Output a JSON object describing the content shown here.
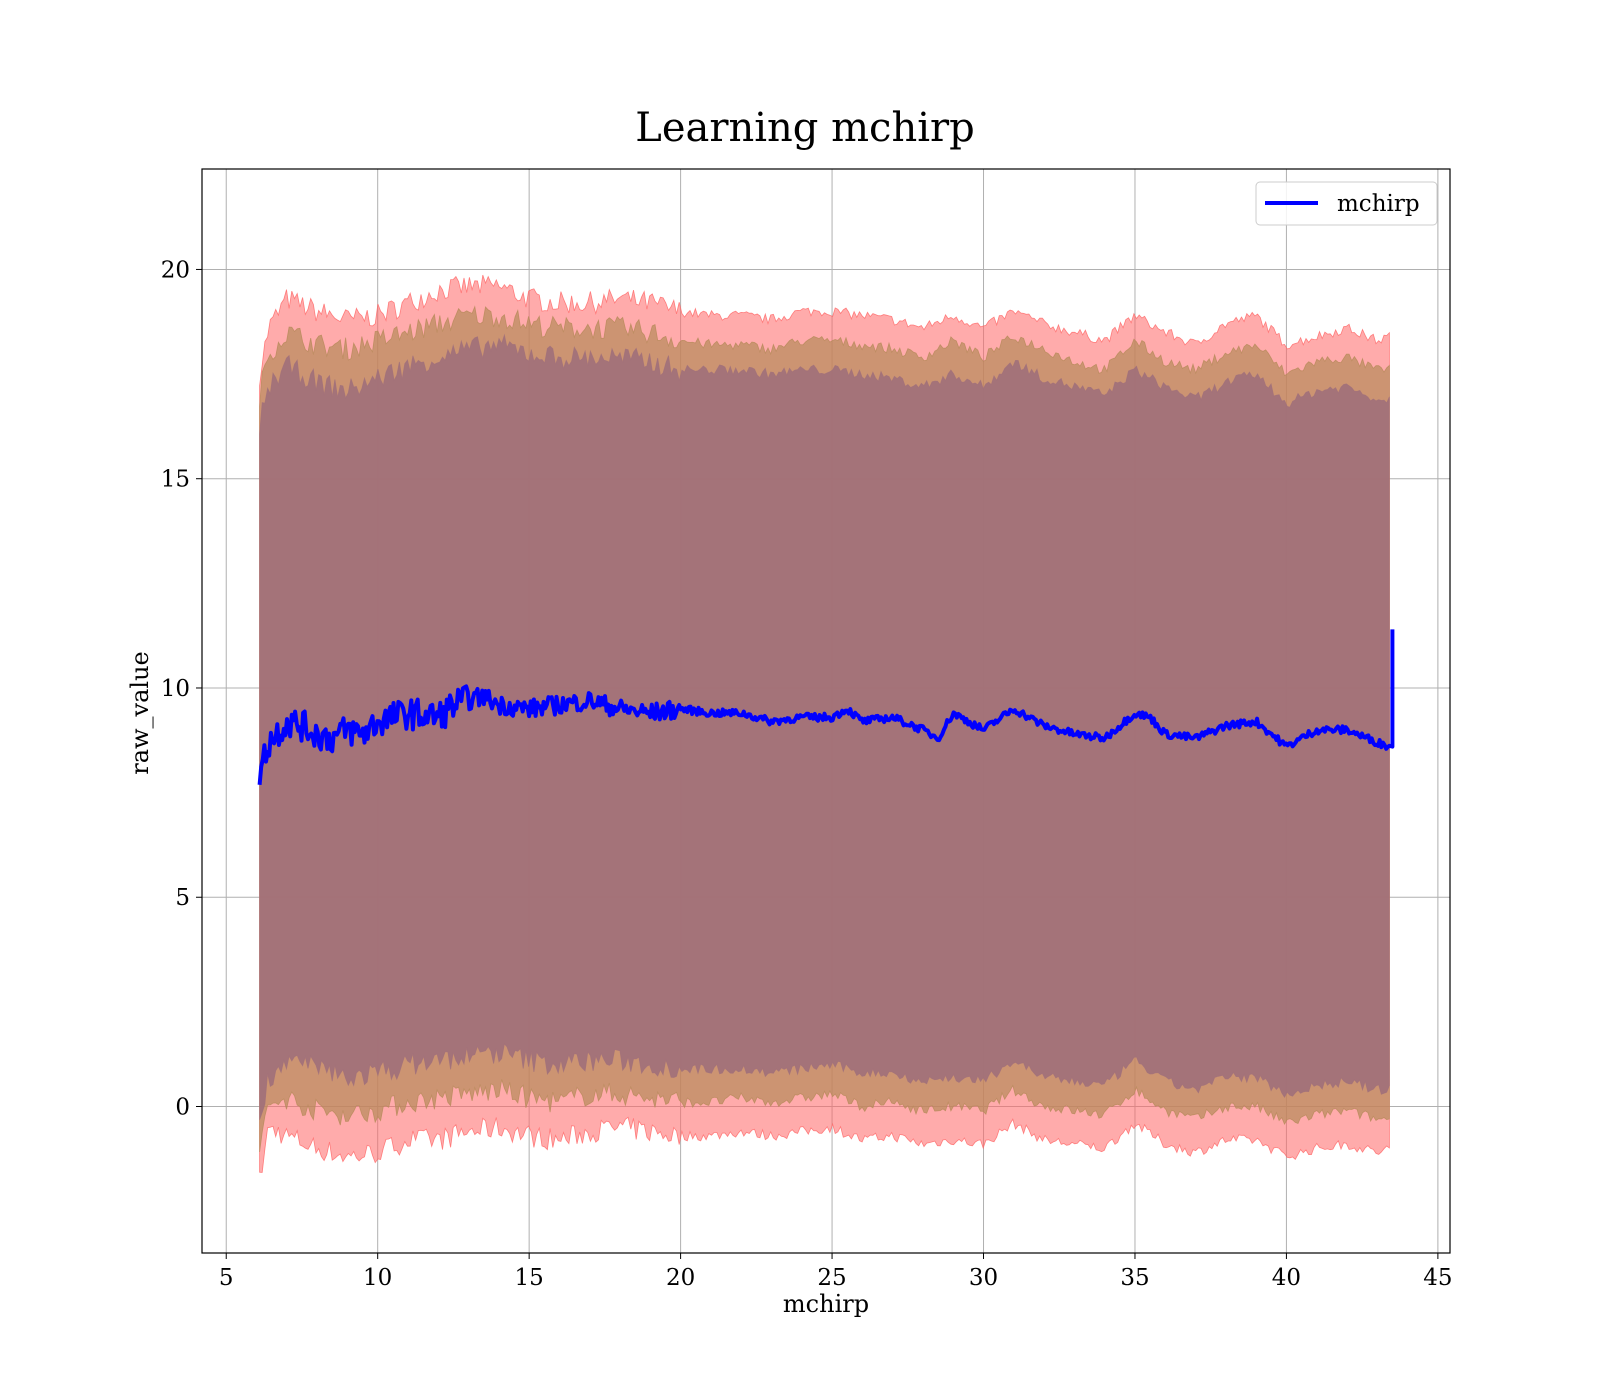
{
  "chart_data": {
    "type": "area",
    "title": "Learning mchirp",
    "xlabel": "mchirp",
    "ylabel": "raw_value",
    "xlim": [
      4.2,
      45.4
    ],
    "ylim": [
      -3.5,
      22.4
    ],
    "x_ticks": [
      5,
      10,
      15,
      20,
      25,
      30,
      35,
      40,
      45
    ],
    "y_ticks": [
      0,
      5,
      10,
      15,
      20
    ],
    "grid": true,
    "legend": {
      "position": "top-right",
      "entries": [
        "mchirp"
      ]
    },
    "colors": {
      "line": "#0000ff",
      "outer_band": "#ff6666",
      "middle_band": "#b78a5a",
      "inner_band": "#a1707a",
      "grid": "#b0b0b0"
    },
    "series": [
      {
        "name": "mchirp",
        "x": [
          6.1,
          6.4,
          7.0,
          7.5,
          8.0,
          8.5,
          9.0,
          9.5,
          10.0,
          11.0,
          12.0,
          12.5,
          13.0,
          13.5,
          14.0,
          15.0,
          16.0,
          17.0,
          18.0,
          19.0,
          20.0,
          21.0,
          22.0,
          23.0,
          24.0,
          25.0,
          25.5,
          26.0,
          27.0,
          28.0,
          28.5,
          29.0,
          30.0,
          31.0,
          32.0,
          33.0,
          34.0,
          35.0,
          35.5,
          36.0,
          37.0,
          38.0,
          39.0,
          40.0,
          41.0,
          42.0,
          43.0,
          43.4
        ],
        "values": [
          8.0,
          8.7,
          9.2,
          9.1,
          8.9,
          8.8,
          9.0,
          8.9,
          9.2,
          9.4,
          9.3,
          9.6,
          9.7,
          9.8,
          9.6,
          9.5,
          9.6,
          9.7,
          9.5,
          9.4,
          9.5,
          9.4,
          9.4,
          9.2,
          9.3,
          9.3,
          9.5,
          9.2,
          9.3,
          9.0,
          8.8,
          9.4,
          9.0,
          9.5,
          9.1,
          8.9,
          8.8,
          9.4,
          9.3,
          8.9,
          8.8,
          9.1,
          9.2,
          8.6,
          9.0,
          9.0,
          8.7,
          8.6
        ],
        "endpoint": {
          "x": 43.5,
          "y": 11.4
        }
      }
    ],
    "bands": [
      {
        "x": [
          6.1,
          6.4,
          7.0,
          8.0,
          9.0,
          10.0,
          11.0,
          12.0,
          13.0,
          14.0,
          15.0,
          16.0,
          17.0,
          18.0,
          19.0,
          20.0,
          21.0,
          22.0,
          23.0,
          24.0,
          25.0,
          26.0,
          27.0,
          28.0,
          29.0,
          30.0,
          31.0,
          32.0,
          33.0,
          34.0,
          35.0,
          36.0,
          37.0,
          38.0,
          39.0,
          40.0,
          41.0,
          42.0,
          43.0,
          43.4
        ],
        "upper": [
          17.5,
          18.6,
          19.3,
          19.0,
          18.8,
          18.9,
          19.2,
          19.5,
          19.6,
          19.6,
          19.3,
          19.2,
          19.2,
          19.3,
          19.2,
          19.0,
          18.9,
          18.9,
          18.8,
          19.0,
          19.0,
          18.9,
          18.8,
          18.6,
          18.9,
          18.6,
          19.0,
          18.7,
          18.5,
          18.3,
          18.9,
          18.5,
          18.2,
          18.7,
          18.9,
          18.2,
          18.4,
          18.6,
          18.3,
          18.4
        ],
        "lower": [
          -1.8,
          -0.5,
          -0.7,
          -1.0,
          -1.2,
          -1.1,
          -0.8,
          -0.8,
          -0.6,
          -0.5,
          -0.7,
          -0.8,
          -0.6,
          -0.5,
          -0.6,
          -0.7,
          -0.7,
          -0.6,
          -0.7,
          -0.6,
          -0.5,
          -0.8,
          -0.7,
          -0.9,
          -0.8,
          -0.9,
          -0.4,
          -0.8,
          -0.9,
          -1.0,
          -0.4,
          -0.9,
          -1.1,
          -0.8,
          -0.8,
          -1.2,
          -1.0,
          -0.9,
          -1.1,
          -1.0
        ]
      },
      {
        "x": [
          6.1,
          6.4,
          7.0,
          8.0,
          9.0,
          10.0,
          11.0,
          12.0,
          13.0,
          14.0,
          15.0,
          16.0,
          17.0,
          18.0,
          19.0,
          20.0,
          21.0,
          22.0,
          23.0,
          24.0,
          25.0,
          26.0,
          27.0,
          28.0,
          29.0,
          30.0,
          31.0,
          32.0,
          33.0,
          34.0,
          35.0,
          36.0,
          37.0,
          38.0,
          39.0,
          40.0,
          41.0,
          42.0,
          43.0,
          43.4
        ],
        "upper": [
          17.0,
          18.0,
          18.5,
          18.2,
          18.1,
          18.3,
          18.5,
          18.7,
          18.9,
          18.9,
          18.7,
          18.6,
          18.6,
          18.6,
          18.5,
          18.3,
          18.2,
          18.2,
          18.1,
          18.3,
          18.3,
          18.2,
          18.1,
          17.9,
          18.3,
          17.9,
          18.4,
          18.1,
          17.8,
          17.6,
          18.3,
          17.8,
          17.6,
          18.0,
          18.2,
          17.5,
          17.8,
          17.9,
          17.6,
          17.6
        ],
        "lower": [
          -1.0,
          0.0,
          0.2,
          -0.1,
          -0.2,
          -0.1,
          0.1,
          0.2,
          0.3,
          0.4,
          0.2,
          0.1,
          0.3,
          0.3,
          0.2,
          0.1,
          0.1,
          0.2,
          0.1,
          0.2,
          0.3,
          0.0,
          0.1,
          -0.1,
          0.0,
          -0.1,
          0.4,
          0.0,
          -0.1,
          -0.2,
          0.4,
          -0.1,
          -0.3,
          0.0,
          0.0,
          -0.4,
          -0.2,
          -0.1,
          -0.3,
          -0.3
        ]
      },
      {
        "x": [
          6.1,
          6.4,
          7.0,
          8.0,
          9.0,
          10.0,
          11.0,
          12.0,
          13.0,
          14.0,
          15.0,
          16.0,
          17.0,
          18.0,
          19.0,
          20.0,
          21.0,
          22.0,
          23.0,
          24.0,
          25.0,
          26.0,
          27.0,
          28.0,
          29.0,
          30.0,
          31.0,
          32.0,
          33.0,
          34.0,
          35.0,
          36.0,
          37.0,
          38.0,
          39.0,
          40.0,
          41.0,
          42.0,
          43.0,
          43.4
        ],
        "upper": [
          16.3,
          17.2,
          17.7,
          17.3,
          17.1,
          17.4,
          17.7,
          17.9,
          18.1,
          18.2,
          18.0,
          17.9,
          17.9,
          17.9,
          17.8,
          17.6,
          17.6,
          17.6,
          17.5,
          17.6,
          17.6,
          17.5,
          17.4,
          17.2,
          17.5,
          17.2,
          17.8,
          17.4,
          17.2,
          17.0,
          17.6,
          17.2,
          16.9,
          17.3,
          17.5,
          16.8,
          17.1,
          17.2,
          16.9,
          16.9
        ],
        "lower": [
          -0.3,
          0.7,
          1.1,
          0.9,
          0.7,
          0.8,
          1.0,
          1.1,
          1.2,
          1.3,
          1.1,
          1.0,
          1.1,
          1.1,
          1.0,
          0.9,
          0.9,
          0.9,
          0.8,
          0.9,
          1.0,
          0.8,
          0.8,
          0.6,
          0.7,
          0.6,
          1.1,
          0.7,
          0.6,
          0.5,
          1.1,
          0.6,
          0.4,
          0.7,
          0.7,
          0.3,
          0.5,
          0.6,
          0.4,
          0.4
        ]
      }
    ]
  }
}
